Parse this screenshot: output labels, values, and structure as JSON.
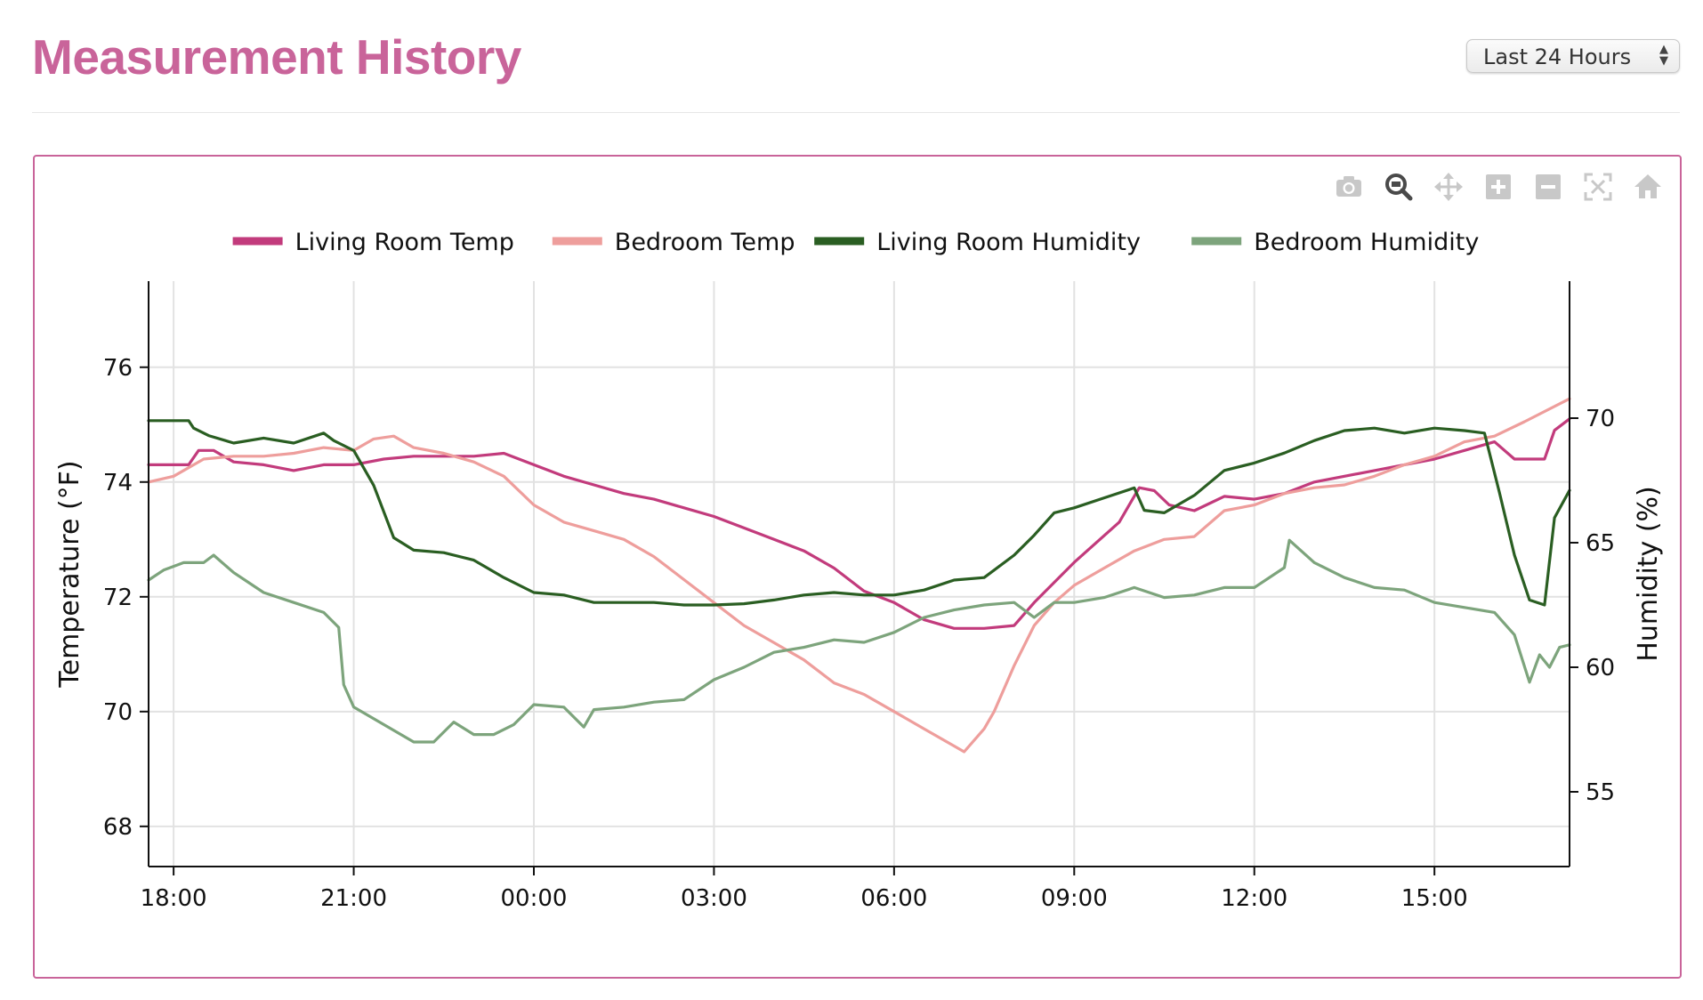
{
  "page": {
    "title": "Measurement History",
    "range_select": {
      "value": "Last 24 Hours"
    }
  },
  "modebar": [
    {
      "name": "camera-icon",
      "label": "Download plot as a png"
    },
    {
      "name": "zoom-icon",
      "label": "Zoom"
    },
    {
      "name": "pan-icon",
      "label": "Pan"
    },
    {
      "name": "zoom-in-icon",
      "label": "Zoom in"
    },
    {
      "name": "zoom-out-icon",
      "label": "Zoom out"
    },
    {
      "name": "autoscale-icon",
      "label": "Autoscale"
    },
    {
      "name": "reset-axes-icon",
      "label": "Reset axes"
    }
  ],
  "chart_data": {
    "type": "line",
    "x_label": "",
    "y_label": "Temperature (°F)",
    "y2_label": "Humidity (%)",
    "x_range": [
      "17:35",
      "17:15"
    ],
    "y_range": [
      67.3,
      77.5
    ],
    "y2_range": [
      52,
      75.5
    ],
    "x_ticks": [
      "18:00",
      "21:00",
      "00:00",
      "03:00",
      "06:00",
      "09:00",
      "12:00",
      "15:00"
    ],
    "y_ticks": [
      68,
      70,
      72,
      74,
      76
    ],
    "y2_ticks": [
      55,
      60,
      65,
      70
    ],
    "grid": true,
    "legend_position": "top",
    "series": [
      {
        "name": "Living Room Temp",
        "axis": "y",
        "color": "#c23b7c",
        "x": [
          "17:35",
          "18:15",
          "18:25",
          "18:40",
          "19:00",
          "19:30",
          "20:00",
          "20:30",
          "21:00",
          "21:30",
          "22:00",
          "22:30",
          "23:00",
          "23:30",
          "00:00",
          "00:30",
          "01:00",
          "01:30",
          "02:00",
          "02:30",
          "03:00",
          "03:30",
          "04:00",
          "04:30",
          "05:00",
          "05:30",
          "06:00",
          "06:30",
          "07:00",
          "07:30",
          "08:00",
          "08:20",
          "09:00",
          "09:45",
          "10:05",
          "10:20",
          "10:35",
          "11:00",
          "11:30",
          "12:00",
          "12:30",
          "13:00",
          "13:30",
          "14:00",
          "14:30",
          "15:00",
          "15:30",
          "16:00",
          "16:20",
          "16:50",
          "17:00",
          "17:15"
        ],
        "y": [
          74.3,
          74.3,
          74.55,
          74.55,
          74.35,
          74.3,
          74.2,
          74.3,
          74.3,
          74.4,
          74.45,
          74.45,
          74.45,
          74.5,
          74.3,
          74.1,
          73.95,
          73.8,
          73.7,
          73.55,
          73.4,
          73.2,
          73.0,
          72.8,
          72.5,
          72.1,
          71.9,
          71.6,
          71.45,
          71.45,
          71.5,
          71.9,
          72.6,
          73.3,
          73.9,
          73.85,
          73.6,
          73.5,
          73.75,
          73.7,
          73.8,
          74.0,
          74.1,
          74.2,
          74.3,
          74.4,
          74.55,
          74.7,
          74.4,
          74.4,
          74.9,
          75.1
        ]
      },
      {
        "name": "Bedroom Temp",
        "axis": "y",
        "color": "#ee9e9c",
        "x": [
          "17:35",
          "18:00",
          "18:30",
          "19:00",
          "19:30",
          "20:00",
          "20:30",
          "21:00",
          "21:20",
          "21:40",
          "22:00",
          "22:30",
          "23:00",
          "23:30",
          "00:00",
          "00:30",
          "01:00",
          "01:30",
          "02:00",
          "02:30",
          "03:00",
          "03:30",
          "04:00",
          "04:30",
          "05:00",
          "05:30",
          "06:00",
          "06:30",
          "07:00",
          "07:10",
          "07:30",
          "07:40",
          "08:00",
          "08:20",
          "08:40",
          "09:00",
          "09:30",
          "10:00",
          "10:30",
          "11:00",
          "11:30",
          "12:00",
          "12:30",
          "13:00",
          "13:30",
          "14:00",
          "14:30",
          "15:00",
          "15:30",
          "16:00",
          "16:30",
          "17:15"
        ],
        "y": [
          74.0,
          74.1,
          74.4,
          74.45,
          74.45,
          74.5,
          74.6,
          74.55,
          74.75,
          74.8,
          74.6,
          74.5,
          74.35,
          74.1,
          73.6,
          73.3,
          73.15,
          73.0,
          72.7,
          72.3,
          71.9,
          71.5,
          71.2,
          70.9,
          70.5,
          70.3,
          70.0,
          69.7,
          69.4,
          69.3,
          69.7,
          70.0,
          70.8,
          71.5,
          71.9,
          72.2,
          72.5,
          72.8,
          73.0,
          73.05,
          73.5,
          73.6,
          73.8,
          73.9,
          73.95,
          74.1,
          74.3,
          74.45,
          74.7,
          74.8,
          75.05,
          75.45
        ]
      },
      {
        "name": "Living Room Humidity",
        "axis": "y2",
        "color": "#2a5e22",
        "x": [
          "17:35",
          "18:15",
          "18:20",
          "18:35",
          "19:00",
          "19:30",
          "20:00",
          "20:30",
          "20:40",
          "21:00",
          "21:20",
          "21:40",
          "22:00",
          "22:30",
          "23:00",
          "23:30",
          "00:00",
          "00:30",
          "01:00",
          "01:30",
          "02:00",
          "02:30",
          "03:00",
          "03:30",
          "04:00",
          "04:30",
          "05:00",
          "05:30",
          "06:00",
          "06:30",
          "07:00",
          "07:30",
          "08:00",
          "08:20",
          "08:40",
          "09:00",
          "09:30",
          "10:00",
          "10:10",
          "10:30",
          "11:00",
          "11:30",
          "12:00",
          "12:30",
          "13:00",
          "13:30",
          "14:00",
          "14:30",
          "15:00",
          "15:30",
          "15:50",
          "16:05",
          "16:20",
          "16:35",
          "16:50",
          "17:00",
          "17:15"
        ],
        "y": [
          69.9,
          69.9,
          69.6,
          69.3,
          69.0,
          69.2,
          69.0,
          69.4,
          69.1,
          68.7,
          67.3,
          65.2,
          64.7,
          64.6,
          64.3,
          63.6,
          63.0,
          62.9,
          62.6,
          62.6,
          62.6,
          62.5,
          62.5,
          62.55,
          62.7,
          62.9,
          63.0,
          62.9,
          62.9,
          63.1,
          63.5,
          63.6,
          64.5,
          65.3,
          66.2,
          66.4,
          66.8,
          67.2,
          66.3,
          66.2,
          66.9,
          67.9,
          68.2,
          68.6,
          69.1,
          69.5,
          69.6,
          69.4,
          69.6,
          69.5,
          69.4,
          67.0,
          64.5,
          62.7,
          62.5,
          66.0,
          67.1
        ]
      },
      {
        "name": "Bedroom Humidity",
        "axis": "y2",
        "color": "#7da47c",
        "x": [
          "17:35",
          "17:50",
          "18:10",
          "18:30",
          "18:40",
          "19:00",
          "19:30",
          "20:00",
          "20:30",
          "20:45",
          "20:50",
          "21:00",
          "21:30",
          "22:00",
          "22:20",
          "22:40",
          "23:00",
          "23:20",
          "23:40",
          "00:00",
          "00:30",
          "00:50",
          "01:00",
          "01:30",
          "02:00",
          "02:30",
          "03:00",
          "03:30",
          "04:00",
          "04:30",
          "05:00",
          "05:30",
          "06:00",
          "06:30",
          "07:00",
          "07:30",
          "08:00",
          "08:20",
          "08:40",
          "09:00",
          "09:30",
          "10:00",
          "10:30",
          "11:00",
          "11:30",
          "12:00",
          "12:30",
          "12:35",
          "13:00",
          "13:30",
          "14:00",
          "14:30",
          "15:00",
          "15:30",
          "16:00",
          "16:20",
          "16:35",
          "16:45",
          "16:55",
          "17:05",
          "17:15"
        ],
        "y": [
          63.5,
          63.9,
          64.2,
          64.2,
          64.5,
          63.8,
          63.0,
          62.6,
          62.2,
          61.6,
          59.3,
          58.4,
          57.7,
          57.0,
          57.0,
          57.8,
          57.3,
          57.3,
          57.7,
          58.5,
          58.4,
          57.6,
          58.3,
          58.4,
          58.6,
          58.7,
          59.5,
          60.0,
          60.6,
          60.8,
          61.1,
          61.0,
          61.4,
          62.0,
          62.3,
          62.5,
          62.6,
          62.0,
          62.6,
          62.6,
          62.8,
          63.2,
          62.8,
          62.9,
          63.2,
          63.2,
          64.0,
          65.1,
          64.2,
          63.6,
          63.2,
          63.1,
          62.6,
          62.4,
          62.2,
          61.3,
          59.4,
          60.5,
          60.0,
          60.8,
          60.9
        ]
      }
    ]
  }
}
